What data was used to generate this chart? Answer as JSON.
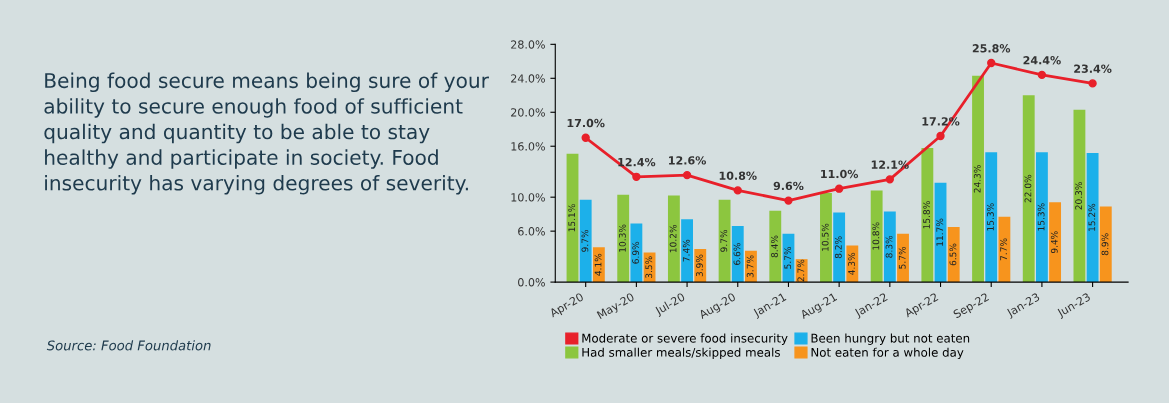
{
  "chart_data": {
    "type": "bar",
    "categories": [
      "Apr-20",
      "May-20",
      "Jul-20",
      "Aug-20",
      "Jan-21",
      "Aug-21",
      "Jan-22",
      "Apr-22",
      "Sep-22",
      "Jan-23",
      "Jun-23"
    ],
    "series": [
      {
        "name": "Moderate or severe food insecurity",
        "type": "line",
        "color": "#e8202a",
        "values": [
          17.0,
          12.4,
          12.6,
          10.8,
          9.6,
          11.0,
          12.1,
          17.2,
          25.8,
          24.4,
          23.4
        ],
        "value_labels": [
          "17.0%",
          "12.4%",
          "12.6%",
          "10.8%",
          "9.6%",
          "11.0%",
          "12.1%",
          "17.2%",
          "25.8%",
          "24.4%",
          "23.4%"
        ]
      },
      {
        "name": "Had smaller meals/skipped meals",
        "color": "#8cc63f",
        "values": [
          15.1,
          10.3,
          10.2,
          9.7,
          8.4,
          10.5,
          10.8,
          15.8,
          24.3,
          22.0,
          20.3
        ],
        "value_labels": [
          "15.1%",
          "10.3%",
          "10.2%",
          "9.7%",
          "8.4%",
          "10.5%",
          "10.8%",
          "15.8%",
          "24.3%",
          "22.0%",
          "20.3%"
        ]
      },
      {
        "name": "Been hungry but not eaten",
        "color": "#1cb0ea",
        "values": [
          9.7,
          6.9,
          7.4,
          6.6,
          5.7,
          8.2,
          8.3,
          11.7,
          15.3,
          15.3,
          15.2
        ],
        "value_labels": [
          "9.7%",
          "6.9%",
          "7.4%",
          "6.6%",
          "5.7%",
          "8.2%",
          "8.3%",
          "11.7%",
          "15.3%",
          "15.3%",
          "15.2%"
        ]
      },
      {
        "name": "Not eaten for a whole day",
        "color": "#f7941d",
        "values": [
          4.1,
          3.5,
          3.9,
          3.7,
          2.7,
          4.3,
          5.7,
          6.5,
          7.7,
          9.4,
          8.9
        ],
        "value_labels": [
          "4.1%",
          "3.5%",
          "3.9%",
          "3.7%",
          "2.7%",
          "4.3%",
          "5.7%",
          "6.5%",
          "7.7%",
          "9.4%",
          "8.9%"
        ]
      }
    ],
    "ylim": [
      0,
      28
    ],
    "yticks": [
      {
        "value": 0,
        "label": "0.0%"
      },
      {
        "value": 6,
        "label": "6.0%"
      },
      {
        "value": 10,
        "label": "10.0%"
      },
      {
        "value": 16,
        "label": "16.0%"
      },
      {
        "value": 20,
        "label": "20.0%"
      },
      {
        "value": 24,
        "label": "24.0%"
      },
      {
        "value": 28,
        "label": "28.0%"
      }
    ],
    "marker": "circle",
    "legend": "bottom",
    "annotations": [
      "Being food secure means being sure of your ability to secure enough food of sufficient quality and quantity to be able to stay healthy and participate in society. Food insecurity has varying degrees of severity.",
      "Source: Food Foundation"
    ]
  }
}
